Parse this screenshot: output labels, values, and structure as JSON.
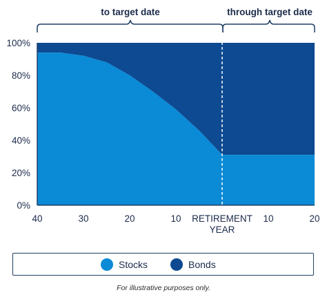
{
  "chart_data": {
    "type": "area",
    "x": [
      "40",
      "35",
      "30",
      "25",
      "20",
      "15",
      "10",
      "5",
      "RETIREMENT YEAR",
      "5",
      "10",
      "15",
      "20"
    ],
    "xtick_labels": [
      "40",
      "30",
      "20",
      "10",
      "RETIREMENT YEAR",
      "10",
      "20"
    ],
    "yticks": [
      "0%",
      "20%",
      "40%",
      "60%",
      "80%",
      "100%"
    ],
    "ylim": [
      0,
      100
    ],
    "series": [
      {
        "name": "Stocks",
        "color": "#0b8ad6",
        "values": [
          94,
          94,
          92,
          88,
          80,
          70,
          59,
          46,
          31,
          31,
          31,
          31,
          31
        ]
      },
      {
        "name": "Bonds",
        "color": "#0d4a91",
        "values": [
          6,
          6,
          8,
          12,
          20,
          30,
          41,
          54,
          69,
          69,
          69,
          69,
          69
        ]
      }
    ],
    "annotations": {
      "left_bracket": "to target date",
      "right_bracket": "through target date"
    },
    "legend_placement": "bottom",
    "grid": false
  },
  "footnote": "For illustrative purposes only."
}
